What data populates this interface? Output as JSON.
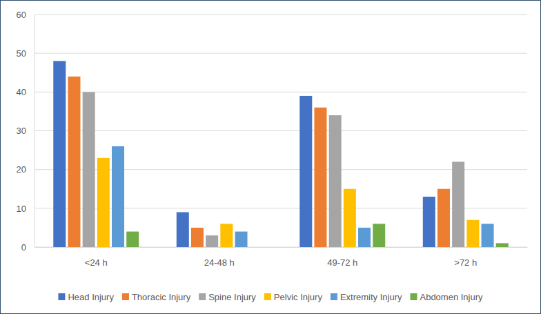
{
  "chart_data": {
    "type": "bar",
    "categories": [
      "<24 h",
      "24-48 h",
      "49-72 h",
      ">72 h"
    ],
    "series": [
      {
        "name": "Head Injury",
        "color": "#4472c4",
        "values": [
          48,
          9,
          39,
          13
        ]
      },
      {
        "name": "Thoracic Injury",
        "color": "#ed7d31",
        "values": [
          44,
          5,
          36,
          15
        ]
      },
      {
        "name": "Spine Injury",
        "color": "#a5a5a5",
        "values": [
          40,
          3,
          34,
          22
        ]
      },
      {
        "name": "Pelvic Injury",
        "color": "#ffc000",
        "values": [
          23,
          6,
          15,
          7
        ]
      },
      {
        "name": "Extremity Injury",
        "color": "#5b9bd5",
        "values": [
          26,
          4,
          5,
          6
        ]
      },
      {
        "name": "Abdomen Injury",
        "color": "#70ad47",
        "values": [
          4,
          0,
          6,
          1
        ]
      }
    ],
    "ylim": [
      0,
      60
    ],
    "yticks": [
      0,
      10,
      20,
      30,
      40,
      50,
      60
    ],
    "grid": true,
    "legend": "bottom"
  }
}
